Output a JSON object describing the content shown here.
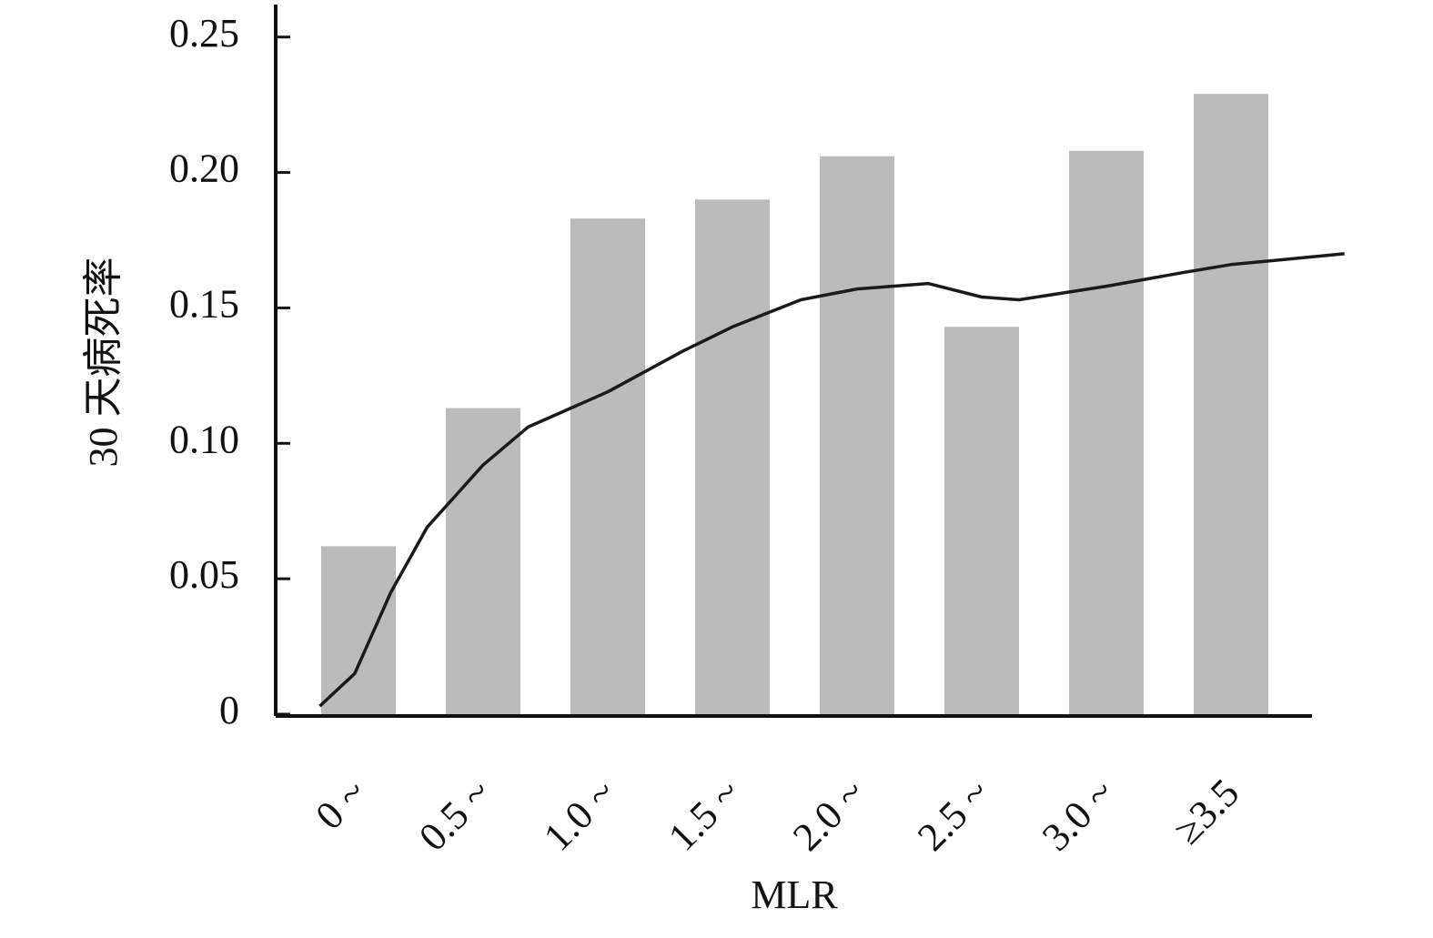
{
  "chart_data": {
    "type": "bar",
    "x_label": "MLR",
    "y_label": "30 天病死率",
    "categories": [
      "0 ~",
      "0.5 ~",
      "1.0 ~",
      "1.5 ~",
      "2.0 ~",
      "2.5 ~",
      "3.0 ~",
      "≥3.5"
    ],
    "values": [
      0.062,
      0.113,
      0.183,
      0.19,
      0.206,
      0.143,
      0.208,
      0.229
    ],
    "color": "#bbbbbb",
    "curve": {
      "color": "#1a1a1a",
      "x": [
        -0.31,
        -0.03,
        0.26,
        0.55,
        1.0,
        1.36,
        2.0,
        2.6,
        3.0,
        3.55,
        4.0,
        4.57,
        5.0,
        5.3,
        6.0,
        6.61,
        7.0,
        7.91
      ],
      "values": [
        0.003,
        0.015,
        0.045,
        0.069,
        0.092,
        0.106,
        0.119,
        0.134,
        0.143,
        0.153,
        0.157,
        0.159,
        0.154,
        0.153,
        0.158,
        0.163,
        0.166,
        0.17
      ]
    },
    "ylim": [
      0,
      0.262
    ],
    "yticks": [
      0,
      0.05,
      {
        "value": 0.1,
        "label": "0.10"
      },
      0.15,
      {
        "value": 0.2,
        "label": "0.20"
      },
      0.25
    ]
  }
}
